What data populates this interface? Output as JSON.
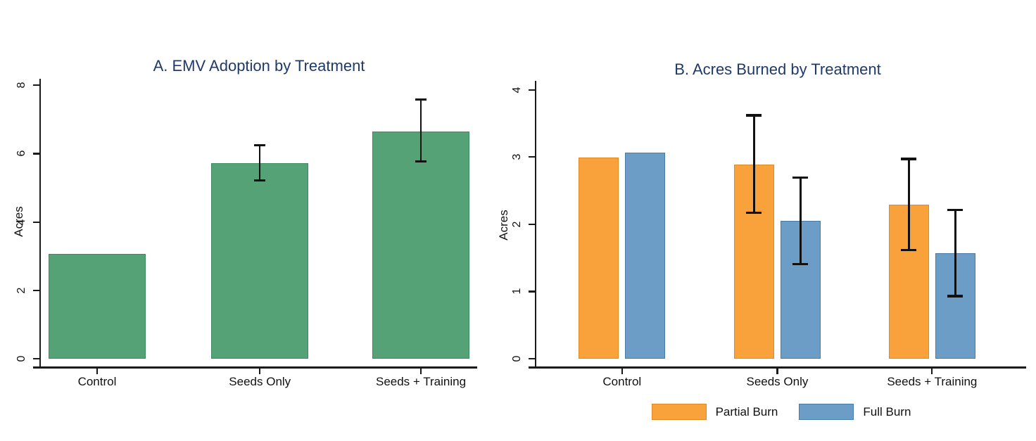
{
  "figure": {
    "background": "#ffffff"
  },
  "styles": {
    "title_color": "#1F3A68",
    "axis_color": "#1A1A1A",
    "text_color": "#111111",
    "error_bar_color": "#111111"
  },
  "chart_data": [
    {
      "type": "bar",
      "panel": "A",
      "title": "A. EMV Adoption by Treatment",
      "ylabel": "Acres",
      "xlabel": "",
      "categories": [
        "Control",
        "Seeds Only",
        "Seeds + Training"
      ],
      "values": [
        3.07,
        5.72,
        6.65
      ],
      "ci_low": [
        null,
        5.21,
        5.77
      ],
      "ci_high": [
        null,
        6.24,
        7.58
      ],
      "ylim": [
        0,
        8
      ],
      "yticks": [
        0,
        2,
        4,
        6,
        8
      ],
      "grid": "off",
      "bar_color": "#56A277",
      "bar_border": "#3C8A61"
    },
    {
      "type": "bar",
      "panel": "B",
      "title": "B. Acres Burned by Treatment",
      "ylabel": "Acres",
      "xlabel": "",
      "categories": [
        "Control",
        "Seeds Only",
        "Seeds + Training"
      ],
      "series": [
        {
          "name": "Partial Burn",
          "color": "#F9A23C",
          "border": "#E18A20",
          "values": [
            2.99,
            2.89,
            2.29
          ],
          "ci_low": [
            null,
            2.17,
            1.62
          ],
          "ci_high": [
            null,
            3.62,
            2.97
          ]
        },
        {
          "name": "Full Burn",
          "color": "#6C9DC6",
          "border": "#4A7BA8",
          "values": [
            3.06,
            2.05,
            1.57
          ],
          "ci_low": [
            null,
            1.41,
            0.93
          ],
          "ci_high": [
            null,
            2.69,
            2.21
          ]
        }
      ],
      "ylim": [
        0,
        4
      ],
      "yticks": [
        0,
        1,
        2,
        3,
        4
      ],
      "grid": "off",
      "legend_position": "bottom"
    }
  ]
}
